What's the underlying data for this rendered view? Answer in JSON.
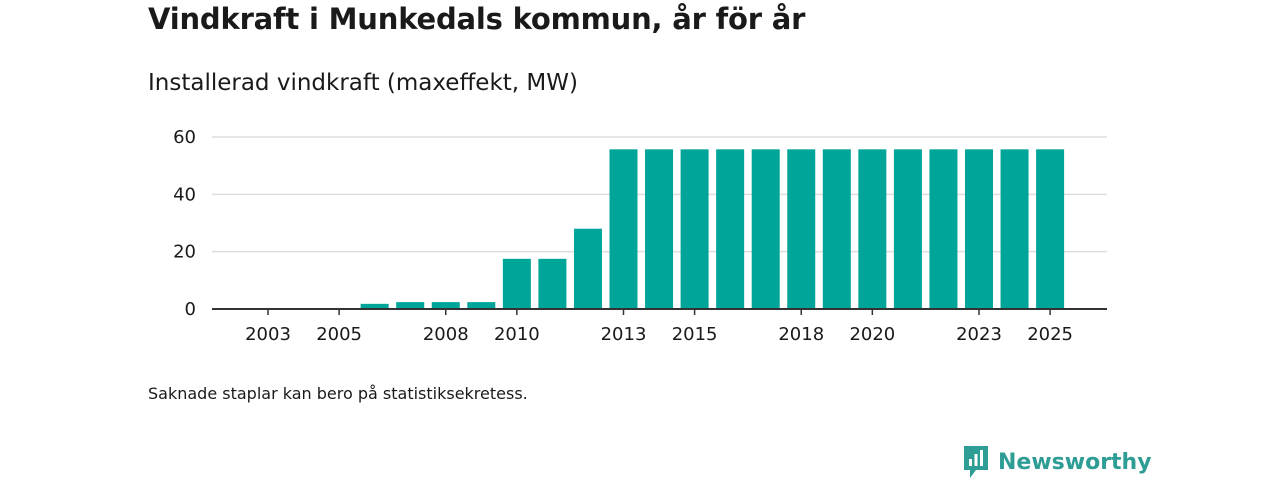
{
  "header": {
    "title": "Vindkraft i Munkedals kommun, år för år",
    "subtitle": "Installerad vindkraft (maxeffekt, MW)"
  },
  "footer": {
    "note": "Saknade staplar kan bero på statistiksekretess."
  },
  "brand": {
    "name": "Newsworthy",
    "icon": "newsworthy-logo-icon"
  },
  "colors": {
    "bar": "#00a59a",
    "brand": "#2e9d96",
    "gridline": "#dddddd",
    "axis": "#333333"
  },
  "chart_data": {
    "type": "bar",
    "title": "Vindkraft i Munkedals kommun, år för år",
    "ylabel": "Installerad vindkraft (maxeffekt, MW)",
    "xlabel": "",
    "categories": [
      2003,
      2004,
      2005,
      2006,
      2007,
      2008,
      2009,
      2010,
      2011,
      2012,
      2013,
      2014,
      2015,
      2016,
      2017,
      2018,
      2019,
      2020,
      2021,
      2022,
      2023,
      2024,
      2025
    ],
    "values": [
      0,
      0,
      0,
      1.8,
      2.4,
      2.4,
      2.4,
      17.5,
      17.5,
      28,
      55.7,
      55.7,
      55.7,
      55.7,
      55.7,
      55.7,
      55.7,
      55.7,
      55.7,
      55.7,
      55.7,
      55.7,
      55.7
    ],
    "xticks": [
      2003,
      2005,
      2008,
      2010,
      2013,
      2015,
      2018,
      2020,
      2023,
      2025
    ],
    "yticks": [
      0,
      20,
      40,
      60
    ],
    "ylim": [
      0,
      60
    ],
    "grid": true,
    "legend": "none"
  }
}
